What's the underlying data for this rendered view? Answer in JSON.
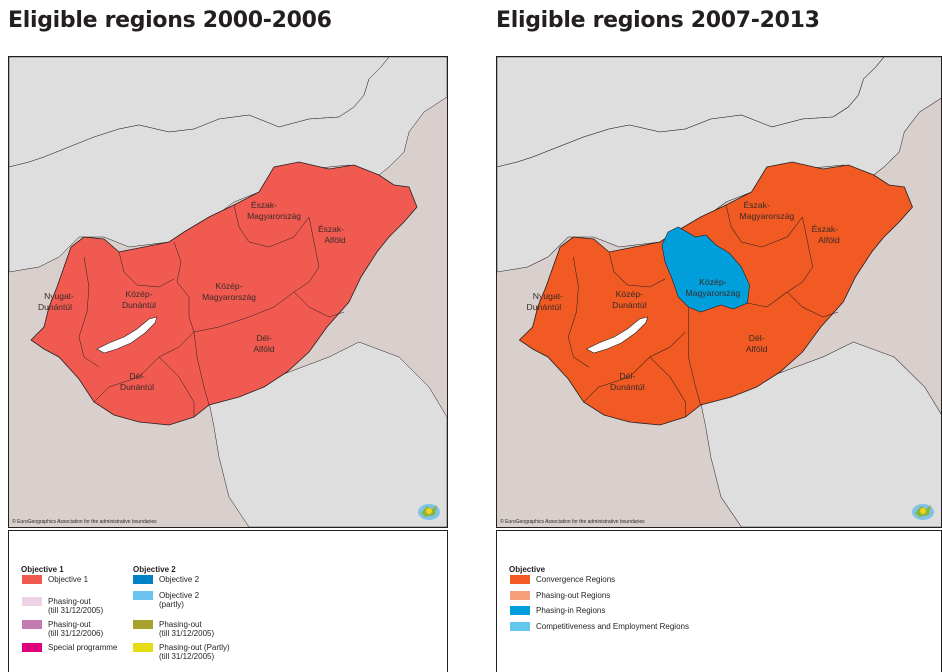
{
  "colors": {
    "non_eu": "#dedede",
    "neighbour_eu": "#d9d0cd",
    "border": "#231f20",
    "lake": "#ffffff",
    "objective1": "#f15a50",
    "convergence": "#f15a22",
    "phasing_in": "#009fdb",
    "phasing_out_2000_2006": "#ecd3e6",
    "phasing_out_2006": "#c47ab3",
    "special_programme": "#e0007c",
    "objective2": "#0082c8",
    "objective2_partly": "#6bc4ef",
    "phasing_out_obj2": "#a7a22e",
    "phasing_out_obj2_partly": "#e6dc16",
    "phasing_out_regions": "#f59f78",
    "competitiveness": "#62c6ed"
  },
  "left_panel": {
    "title": "Eligible regions 2000-2006",
    "credit": "© EuroGeographics Association for the administrative boundaries",
    "region_labels": {
      "eszak_magyarorszag": [
        "Észak-",
        "Magyarország"
      ],
      "eszak_alfold": [
        "Észak-",
        "Alföld"
      ],
      "kozep_magyarorszag": [
        "Közép-",
        "Magyarország"
      ],
      "nyugat_dunantul": [
        "Nyugat-",
        "Dunántúl"
      ],
      "kozep_dunantul": [
        "Közép-",
        "Dunántúl"
      ],
      "del_alfold": [
        "Dél-",
        "Alföld"
      ],
      "del_dunantul": [
        "Dél-",
        "Dunántúl"
      ]
    },
    "legend": {
      "group1_heading": "Objective 1",
      "group1_items": [
        {
          "label": "Objective 1",
          "color": "#f15a50"
        },
        {
          "label": "Phasing-out",
          "label2": "(till 31/12/2005)",
          "color": "#ecd3e6"
        },
        {
          "label": "Phasing-out",
          "label2": "(till 31/12/2006)",
          "color": "#c47ab3"
        },
        {
          "label": "Special programme",
          "color": "#e0007c"
        }
      ],
      "group2_heading": "Objective 2",
      "group2_items": [
        {
          "label": "Objective 2",
          "color": "#0082c8"
        },
        {
          "label": "Objective 2",
          "label2": "(partly)",
          "color": "#6bc4ef"
        },
        {
          "label": "Phasing-out",
          "label2": "(till 31/12/2005)",
          "color": "#a7a22e"
        },
        {
          "label": "Phasing-out (Partly)",
          "label2": "(till 31/12/2005)",
          "color": "#e6dc16"
        }
      ]
    }
  },
  "right_panel": {
    "title": "Eligible regions 2007-2013",
    "credit": "© EuroGeographics Association for the administrative boundaries",
    "region_labels": {
      "eszak_magyarorszag": [
        "Észak-",
        "Magyarország"
      ],
      "eszak_alfold": [
        "Észak-",
        "Alföld"
      ],
      "kozep_magyarorszag": [
        "Közép-",
        "Magyarország"
      ],
      "nyugat_dunantul": [
        "Nyugat-",
        "Dunántúl"
      ],
      "kozep_dunantul": [
        "Közép-",
        "Dunántúl"
      ],
      "del_alfold": [
        "Dél-",
        "Alföld"
      ],
      "del_dunantul": [
        "Dél-",
        "Dunántúl"
      ]
    },
    "legend": {
      "heading": "Objective",
      "items": [
        {
          "label": "Convergence Regions",
          "color": "#f15a22"
        },
        {
          "label": "Phasing-out Regions",
          "color": "#f59f78"
        },
        {
          "label": "Phasing-in Regions",
          "color": "#009fdb"
        },
        {
          "label": "Competitiveness and Employment Regions",
          "color": "#62c6ed"
        }
      ]
    }
  }
}
